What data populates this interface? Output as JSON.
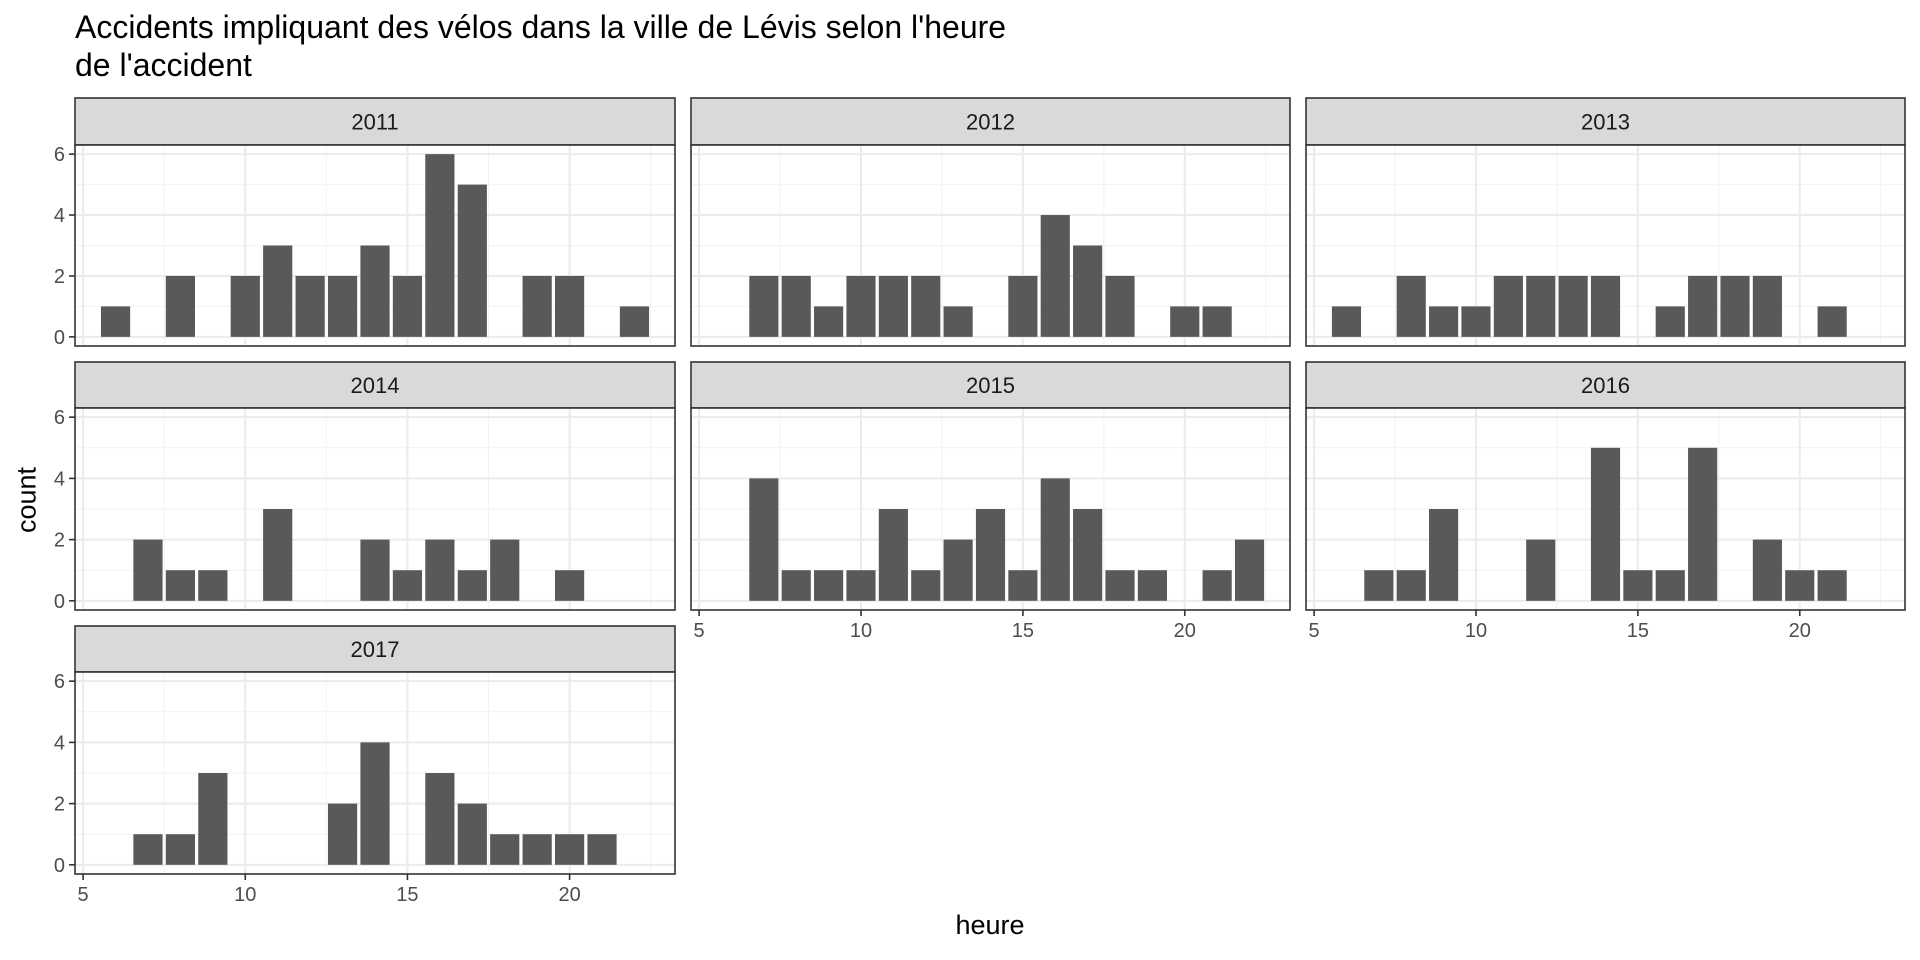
{
  "chart_data": {
    "type": "bar",
    "title_lines": [
      "Accidents impliquant des vélos dans la ville de Lévis selon l'heure",
      "de l'accident"
    ],
    "xlabel": "heure",
    "ylabel": "count",
    "xlim": [
      4.75,
      23.25
    ],
    "ylim": [
      -0.3,
      6.3
    ],
    "x_ticks": [
      5,
      10,
      15,
      20
    ],
    "y_ticks": [
      0,
      2,
      4,
      6
    ],
    "grid": true,
    "bar_color": "#595959",
    "strip_color": "#D9D9D9",
    "panels": [
      {
        "label": "2011",
        "bars": [
          {
            "x": 6,
            "y": 1
          },
          {
            "x": 8,
            "y": 2
          },
          {
            "x": 10,
            "y": 2
          },
          {
            "x": 11,
            "y": 3
          },
          {
            "x": 12,
            "y": 2
          },
          {
            "x": 13,
            "y": 2
          },
          {
            "x": 14,
            "y": 3
          },
          {
            "x": 15,
            "y": 2
          },
          {
            "x": 16,
            "y": 6
          },
          {
            "x": 17,
            "y": 5
          },
          {
            "x": 19,
            "y": 2
          },
          {
            "x": 20,
            "y": 2
          },
          {
            "x": 22,
            "y": 1
          }
        ]
      },
      {
        "label": "2012",
        "bars": [
          {
            "x": 7,
            "y": 2
          },
          {
            "x": 8,
            "y": 2
          },
          {
            "x": 9,
            "y": 1
          },
          {
            "x": 10,
            "y": 2
          },
          {
            "x": 11,
            "y": 2
          },
          {
            "x": 12,
            "y": 2
          },
          {
            "x": 13,
            "y": 1
          },
          {
            "x": 15,
            "y": 2
          },
          {
            "x": 16,
            "y": 4
          },
          {
            "x": 17,
            "y": 3
          },
          {
            "x": 18,
            "y": 2
          },
          {
            "x": 20,
            "y": 1
          },
          {
            "x": 21,
            "y": 1
          }
        ]
      },
      {
        "label": "2013",
        "bars": [
          {
            "x": 6,
            "y": 1
          },
          {
            "x": 8,
            "y": 2
          },
          {
            "x": 9,
            "y": 1
          },
          {
            "x": 10,
            "y": 1
          },
          {
            "x": 11,
            "y": 2
          },
          {
            "x": 12,
            "y": 2
          },
          {
            "x": 13,
            "y": 2
          },
          {
            "x": 14,
            "y": 2
          },
          {
            "x": 16,
            "y": 1
          },
          {
            "x": 17,
            "y": 2
          },
          {
            "x": 18,
            "y": 2
          },
          {
            "x": 19,
            "y": 2
          },
          {
            "x": 21,
            "y": 1
          }
        ]
      },
      {
        "label": "2014",
        "bars": [
          {
            "x": 7,
            "y": 2
          },
          {
            "x": 8,
            "y": 1
          },
          {
            "x": 9,
            "y": 1
          },
          {
            "x": 11,
            "y": 3
          },
          {
            "x": 14,
            "y": 2
          },
          {
            "x": 15,
            "y": 1
          },
          {
            "x": 16,
            "y": 2
          },
          {
            "x": 17,
            "y": 1
          },
          {
            "x": 18,
            "y": 2
          },
          {
            "x": 20,
            "y": 1
          }
        ]
      },
      {
        "label": "2015",
        "bars": [
          {
            "x": 7,
            "y": 4
          },
          {
            "x": 8,
            "y": 1
          },
          {
            "x": 9,
            "y": 1
          },
          {
            "x": 10,
            "y": 1
          },
          {
            "x": 11,
            "y": 3
          },
          {
            "x": 12,
            "y": 1
          },
          {
            "x": 13,
            "y": 2
          },
          {
            "x": 14,
            "y": 3
          },
          {
            "x": 15,
            "y": 1
          },
          {
            "x": 16,
            "y": 4
          },
          {
            "x": 17,
            "y": 3
          },
          {
            "x": 18,
            "y": 1
          },
          {
            "x": 19,
            "y": 1
          },
          {
            "x": 21,
            "y": 1
          },
          {
            "x": 22,
            "y": 2
          }
        ]
      },
      {
        "label": "2016",
        "bars": [
          {
            "x": 7,
            "y": 1
          },
          {
            "x": 8,
            "y": 1
          },
          {
            "x": 9,
            "y": 3
          },
          {
            "x": 12,
            "y": 2
          },
          {
            "x": 14,
            "y": 5
          },
          {
            "x": 15,
            "y": 1
          },
          {
            "x": 16,
            "y": 1
          },
          {
            "x": 17,
            "y": 5
          },
          {
            "x": 19,
            "y": 2
          },
          {
            "x": 20,
            "y": 1
          },
          {
            "x": 21,
            "y": 1
          }
        ]
      },
      {
        "label": "2017",
        "bars": [
          {
            "x": 7,
            "y": 1
          },
          {
            "x": 8,
            "y": 1
          },
          {
            "x": 9,
            "y": 3
          },
          {
            "x": 13,
            "y": 2
          },
          {
            "x": 14,
            "y": 4
          },
          {
            "x": 16,
            "y": 3
          },
          {
            "x": 17,
            "y": 2
          },
          {
            "x": 18,
            "y": 1
          },
          {
            "x": 19,
            "y": 1
          },
          {
            "x": 20,
            "y": 1
          },
          {
            "x": 21,
            "y": 1
          }
        ]
      }
    ]
  }
}
